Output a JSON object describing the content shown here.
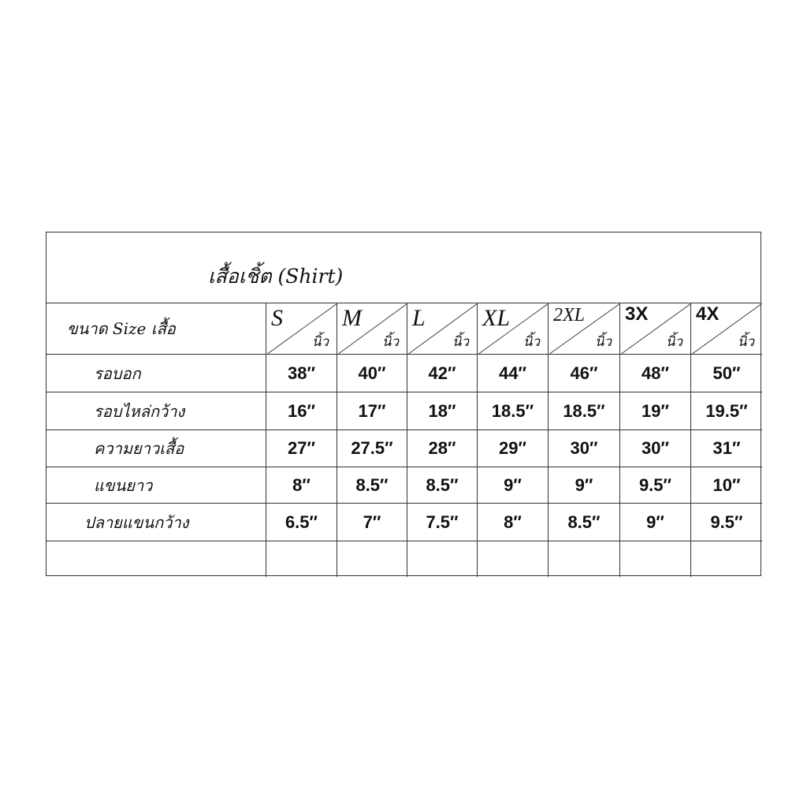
{
  "title": "เสื้อเชิ้ต  (Shirt)",
  "header_label": "ขนาด  Size  เสื้อ",
  "unit": "นิ้ว",
  "sizes": [
    "S",
    "M",
    "L",
    "XL",
    "2XL",
    "3X",
    "4X"
  ],
  "rows": [
    {
      "label": "รอบอก",
      "values": [
        "38″",
        "40″",
        "42″",
        "44″",
        "46″",
        "48″",
        "50″"
      ]
    },
    {
      "label": "รอบไหล่กว้าง",
      "values": [
        "16″",
        "17″",
        "18″",
        "18.5″",
        "18.5″",
        "19″",
        "19.5″"
      ]
    },
    {
      "label": "ความยาวเสื้อ",
      "values": [
        "27″",
        "27.5″",
        "28″",
        "29″",
        "30″",
        "30″",
        "31″"
      ]
    },
    {
      "label": "แขนยาว",
      "values": [
        "8″",
        "8.5″",
        "8.5″",
        "9″",
        "9″",
        "9.5″",
        "10″"
      ]
    },
    {
      "label": "ปลายแขนกว้าง",
      "values": [
        "6.5″",
        "7″",
        "7.5″",
        "8″",
        "8.5″",
        "9″",
        "9.5″"
      ]
    },
    {
      "label": "",
      "values": [
        "",
        "",
        "",
        "",
        "",
        "",
        ""
      ]
    }
  ]
}
